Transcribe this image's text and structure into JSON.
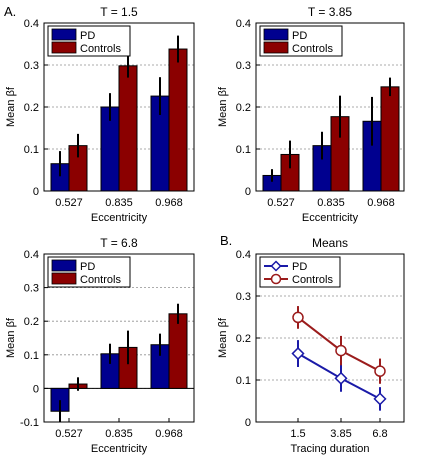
{
  "panel_labels": {
    "a": "A.",
    "b": "B."
  },
  "colors": {
    "pd": "#00008f",
    "controls": "#8b0000",
    "pd_line": "#1a1aa8",
    "controls_line": "#9b1c1c",
    "grid": "#909090"
  },
  "chart_data": [
    {
      "id": "t15",
      "type": "bar",
      "title": "T = 1.5",
      "xlabel": "Eccentricity",
      "ylabel": "Mean βf",
      "ylim": [
        0,
        0.4
      ],
      "yticks": [
        "0",
        "0.1",
        "0.2",
        "0.3",
        "0.4"
      ],
      "categories": [
        "0.527",
        "0.835",
        "0.968"
      ],
      "legend": "top-left",
      "grid": "horizontal dashed",
      "series": [
        {
          "name": "PD",
          "color": "#00008f",
          "values": [
            0.065,
            0.2,
            0.226
          ],
          "errors": [
            0.03,
            0.033,
            0.045
          ]
        },
        {
          "name": "Controls",
          "color": "#8b0000",
          "values": [
            0.108,
            0.298,
            0.338
          ],
          "errors": [
            0.028,
            0.028,
            0.032
          ]
        }
      ]
    },
    {
      "id": "t385",
      "type": "bar",
      "title": "T = 3.85",
      "xlabel": "Eccentricity",
      "ylabel": "Mean βf",
      "ylim": [
        0,
        0.4
      ],
      "yticks": [
        "0",
        "0.1",
        "0.2",
        "0.3",
        "0.4"
      ],
      "categories": [
        "0.527",
        "0.835",
        "0.968"
      ],
      "legend": "top-left",
      "grid": "horizontal dashed",
      "series": [
        {
          "name": "PD",
          "color": "#00008f",
          "values": [
            0.037,
            0.108,
            0.166
          ],
          "errors": [
            0.015,
            0.033,
            0.058
          ]
        },
        {
          "name": "Controls",
          "color": "#8b0000",
          "values": [
            0.087,
            0.177,
            0.248
          ],
          "errors": [
            0.033,
            0.05,
            0.022
          ]
        }
      ]
    },
    {
      "id": "t68",
      "type": "bar",
      "title": "T = 6.8",
      "xlabel": "Eccentricity",
      "ylabel": "Mean βf",
      "ylim": [
        -0.1,
        0.4
      ],
      "yticks": [
        "-0.1",
        "0",
        "0.1",
        "0.2",
        "0.3",
        "0.4"
      ],
      "categories": [
        "0.527",
        "0.835",
        "0.968"
      ],
      "legend": "top-left",
      "grid": "horizontal dashed",
      "series": [
        {
          "name": "PD",
          "color": "#00008f",
          "values": [
            -0.068,
            0.103,
            0.13
          ],
          "errors": [
            0.033,
            0.03,
            0.033
          ]
        },
        {
          "name": "Controls",
          "color": "#8b0000",
          "values": [
            0.013,
            0.122,
            0.222
          ],
          "errors": [
            0.02,
            0.05,
            0.03
          ]
        }
      ]
    },
    {
      "id": "means",
      "type": "line",
      "title": "Means",
      "xlabel": "Tracing duration",
      "ylabel": "Mean βf",
      "ylim": [
        0,
        0.4
      ],
      "yticks": [
        "0",
        "0.1",
        "0.2",
        "0.3",
        "0.4"
      ],
      "x": [
        "1.5",
        "3.85",
        "6.8"
      ],
      "legend": "top-left",
      "grid": "horizontal dashed",
      "series": [
        {
          "name": "PD",
          "color": "#1a1aa8",
          "marker": "diamond",
          "values": [
            0.163,
            0.104,
            0.055
          ],
          "errors": [
            0.032,
            0.032,
            0.028
          ]
        },
        {
          "name": "Controls",
          "color": "#9b1c1c",
          "marker": "circle",
          "values": [
            0.249,
            0.17,
            0.121
          ],
          "errors": [
            0.027,
            0.035,
            0.03
          ]
        }
      ]
    }
  ]
}
